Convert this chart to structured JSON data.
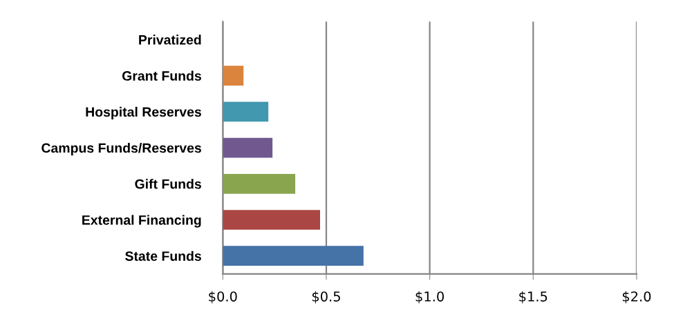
{
  "chart_data": {
    "type": "bar",
    "orientation": "horizontal",
    "categories": [
      "Privatized",
      "Grant Funds",
      "Hospital Reserves",
      "Campus Funds/Reserves",
      "Gift Funds",
      "External Financing",
      "State Funds"
    ],
    "values": [
      0,
      0.1,
      0.22,
      0.24,
      0.35,
      0.47,
      0.68
    ],
    "colors": [
      "#4572a7",
      "#db843d",
      "#4198af",
      "#71588f",
      "#89a54e",
      "#aa4643",
      "#4572a7"
    ],
    "xlim": [
      0,
      2
    ],
    "xticks": [
      {
        "value": 0,
        "label": "$0.0"
      },
      {
        "value": 0.5,
        "label": "$0.5"
      },
      {
        "value": 1,
        "label": "$1.0"
      },
      {
        "value": 1.5,
        "label": "$1.5"
      },
      {
        "value": 2,
        "label": "$2.0"
      }
    ],
    "grid": "x"
  }
}
